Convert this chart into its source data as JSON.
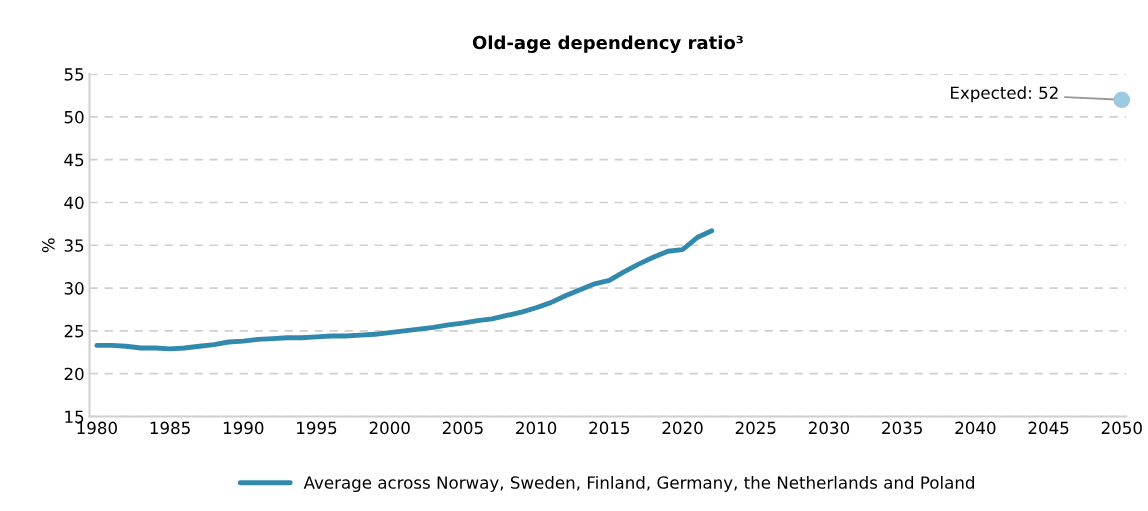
{
  "chart_data": {
    "type": "line",
    "title": "Old-age dependency ratio³",
    "ylabel": "%",
    "series": [
      {
        "name": "Average across Norway, Sweden, Finland, Germany, the Netherlands and Poland",
        "color": "#318aad",
        "x": [
          1980,
          1981,
          1982,
          1983,
          1984,
          1985,
          1986,
          1987,
          1988,
          1989,
          1990,
          1991,
          1992,
          1993,
          1994,
          1995,
          1996,
          1997,
          1998,
          1999,
          2000,
          2001,
          2002,
          2003,
          2004,
          2005,
          2006,
          2007,
          2008,
          2009,
          2010,
          2011,
          2012,
          2013,
          2014,
          2015,
          2016,
          2017,
          2018,
          2019,
          2020,
          2021,
          2022
        ],
        "values": [
          23.3,
          23.3,
          23.2,
          23.0,
          23.0,
          22.9,
          23.0,
          23.2,
          23.4,
          23.7,
          23.8,
          24.0,
          24.1,
          24.2,
          24.2,
          24.3,
          24.4,
          24.4,
          24.5,
          24.6,
          24.8,
          25.0,
          25.2,
          25.4,
          25.7,
          25.9,
          26.2,
          26.4,
          26.8,
          27.2,
          27.7,
          28.3,
          29.1,
          29.8,
          30.5,
          30.9,
          31.9,
          32.8,
          33.6,
          34.3,
          34.5,
          35.9,
          36.7
        ]
      },
      {
        "color": "#9ecae1",
        "type": "scatter",
        "marker": "circle",
        "x": [
          2050
        ],
        "values": [
          52
        ]
      }
    ],
    "annotations": [
      {
        "text": "Expected: 52",
        "x": 2050,
        "y": 52
      }
    ],
    "xlim": [
      1979.5,
      2050.3
    ],
    "xticks": [
      1980,
      1985,
      1990,
      1995,
      2000,
      2005,
      2010,
      2015,
      2020,
      2025,
      2030,
      2035,
      2040,
      2045,
      2050
    ],
    "ylim": [
      15,
      55
    ],
    "yticks": [
      15,
      20,
      25,
      30,
      35,
      40,
      45,
      50,
      55
    ],
    "grid": "y",
    "legend": "bottom",
    "line_style": "solid"
  }
}
